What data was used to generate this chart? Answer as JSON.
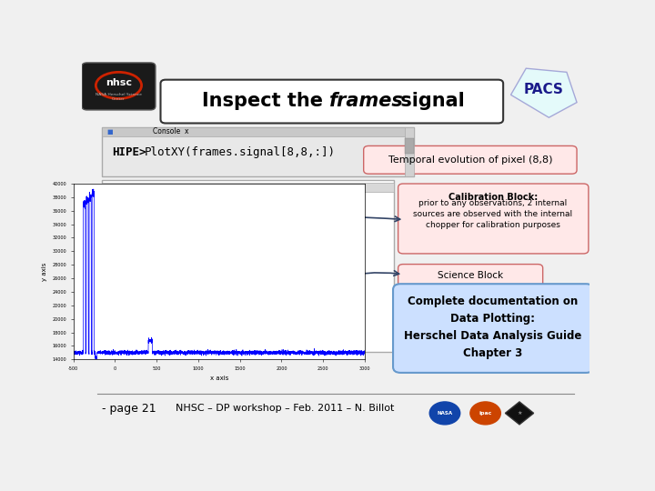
{
  "bg_color": "#f0f0f0",
  "title_text": "Inspect the frames signal",
  "title_italic_part": "frames",
  "title_fontsize": 18,
  "console_text": "HIPE> PlotXY(frames.signal[8,8,:])",
  "temporal_label": "Temporal evolution of pixel (8,8)",
  "calib_title": "Calibration Block:",
  "calib_body": "prior to any observations, 2 internal\nsources are observed with the internal\nchopper for calibration purposes",
  "science_label": "Science Block",
  "doc_box_text": "Complete documentation on\nData Plotting:\nHerschel Data Analysis Guide\nChapter 3",
  "page_text": "- page 21",
  "footer_text": "NHSC – DP workshop – Feb. 2011 – N. Billot",
  "pacs_text": "PACS",
  "box_border_color": "#cc6666",
  "doc_box_bg": "#cce0ff",
  "doc_box_border": "#6699cc",
  "console_bg": "#e8e8e8",
  "console_border": "#aaaaaa",
  "arrow_color": "#334466"
}
